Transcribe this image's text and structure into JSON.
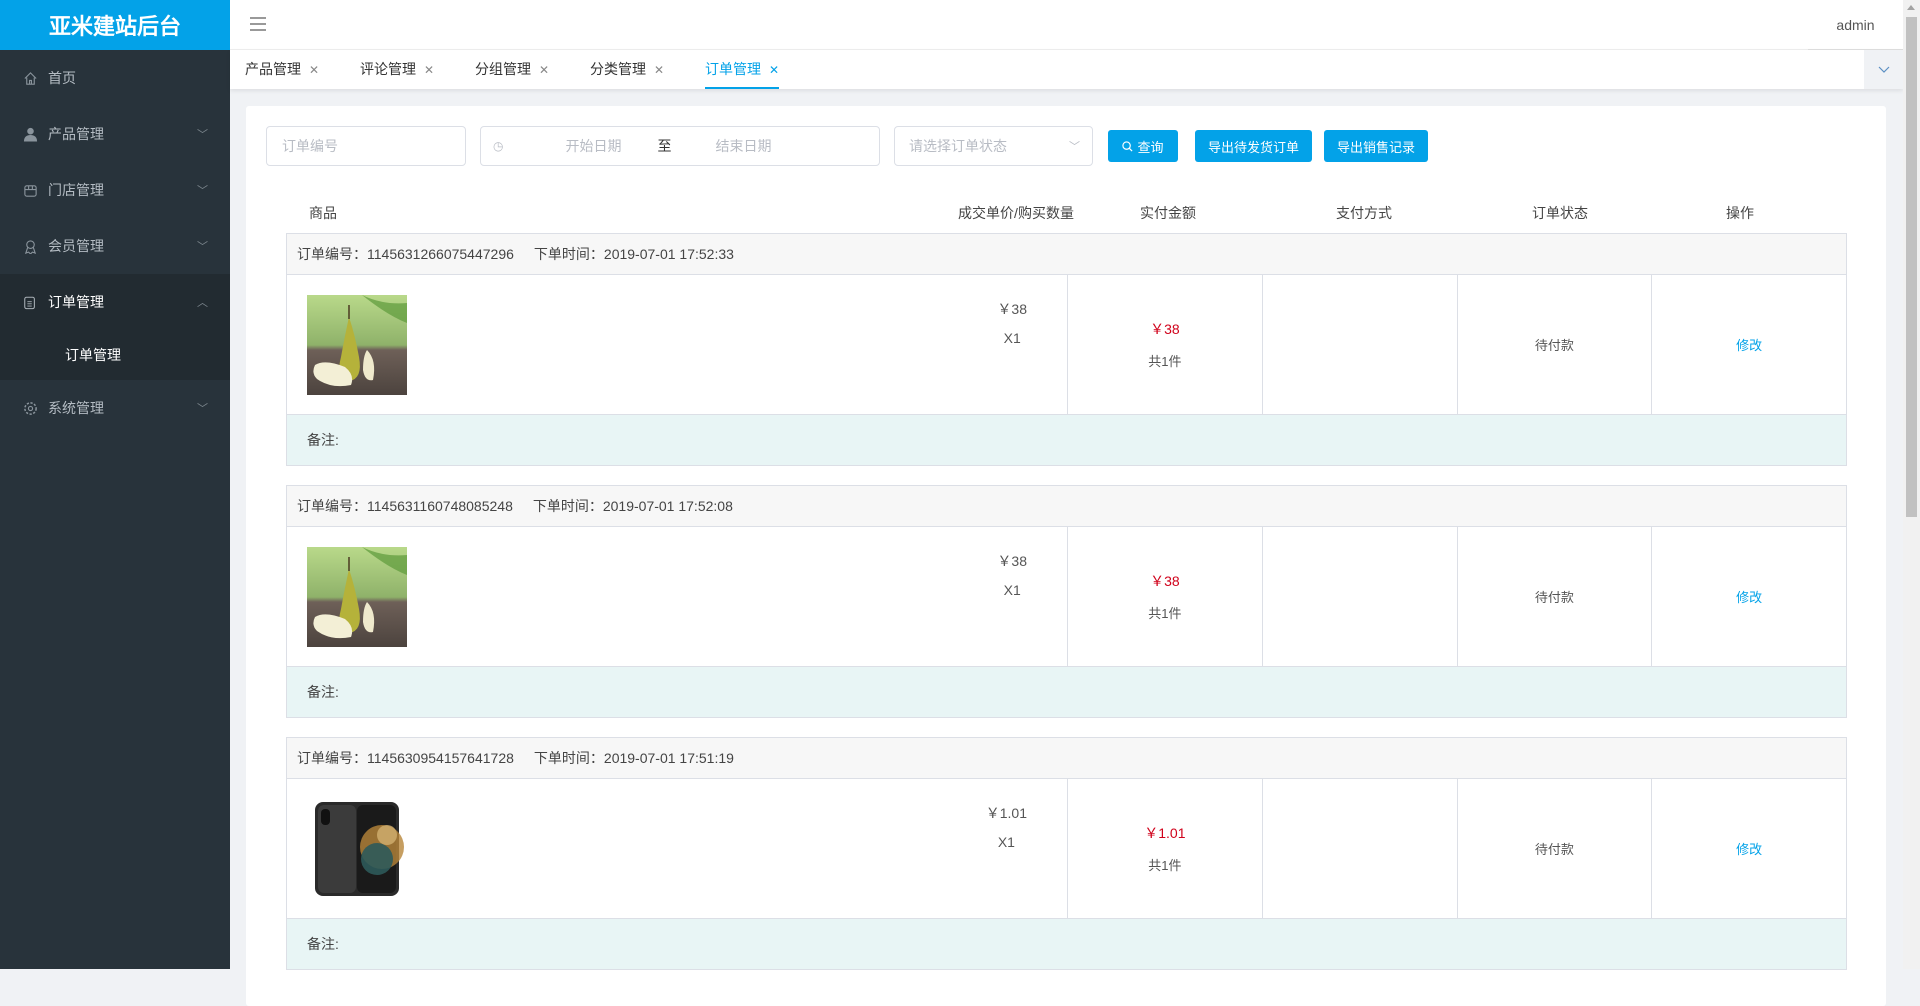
{
  "app": {
    "title": "亚米建站后台",
    "user": "admin"
  },
  "sidebar": {
    "items": [
      {
        "label": "首页",
        "icon": "home-icon"
      },
      {
        "label": "产品管理",
        "icon": "user-icon"
      },
      {
        "label": "门店管理",
        "icon": "store-icon"
      },
      {
        "label": "会员管理",
        "icon": "badge-icon"
      },
      {
        "label": "订单管理",
        "icon": "document-icon",
        "open": true,
        "children": [
          {
            "label": "订单管理"
          }
        ]
      },
      {
        "label": "系统管理",
        "icon": "gear-icon"
      }
    ]
  },
  "tabs": [
    {
      "label": "产品管理"
    },
    {
      "label": "评论管理"
    },
    {
      "label": "分组管理"
    },
    {
      "label": "分类管理"
    },
    {
      "label": "订单管理",
      "active": true
    }
  ],
  "filters": {
    "order_no_placeholder": "订单编号",
    "start_placeholder": "开始日期",
    "range_sep": "至",
    "end_placeholder": "结束日期",
    "status_placeholder": "请选择订单状态",
    "search_label": "查询",
    "export_pending_label": "导出待发货订单",
    "export_sales_label": "导出销售记录"
  },
  "columns": [
    "商品",
    "成交单价/购买数量",
    "实付金额",
    "支付方式",
    "订单状态",
    "操作"
  ],
  "orders": [
    {
      "no_label": "订单编号：1145631266075447296",
      "time_label": "下单时间：2019-07-01 17:52:33",
      "image": "pear",
      "price": "￥38",
      "qty": "X1",
      "paid": "￥38",
      "count": "共1件",
      "payment": "",
      "status": "待付款",
      "action": "修改",
      "remark": "备注:"
    },
    {
      "no_label": "订单编号：1145631160748085248",
      "time_label": "下单时间：2019-07-01 17:52:08",
      "image": "pear",
      "price": "￥38",
      "qty": "X1",
      "paid": "￥38",
      "count": "共1件",
      "payment": "",
      "status": "待付款",
      "action": "修改",
      "remark": "备注:"
    },
    {
      "no_label": "订单编号：1145630954157641728",
      "time_label": "下单时间：2019-07-01 17:51:19",
      "image": "phone",
      "price": "￥1.01",
      "qty": "X1",
      "paid": "￥1.01",
      "count": "共1件",
      "payment": "",
      "status": "待付款",
      "action": "修改",
      "remark": "备注:"
    }
  ],
  "colors": {
    "brand": "#03a2e8",
    "sidebar": "#28333b",
    "price": "#d0021b",
    "remark_bg": "#e8f5f5"
  }
}
